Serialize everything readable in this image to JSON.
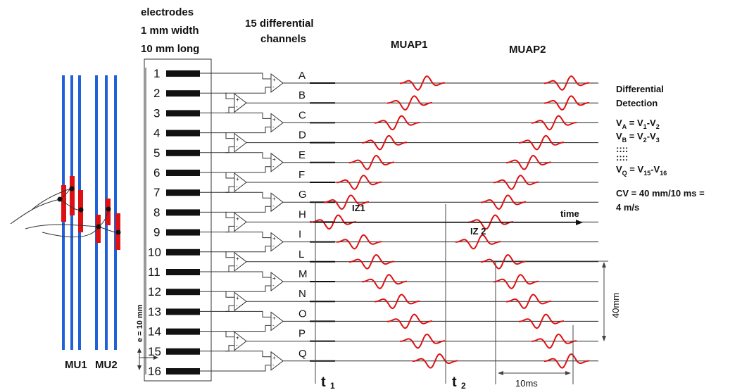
{
  "header": {
    "electrodes_l1": "electrodes",
    "electrodes_l2": "1 mm width",
    "electrodes_l3": "10 mm long",
    "channels_l1": "15 differential",
    "channels_l2": "channels",
    "muap1": "MUAP1",
    "muap2": "MUAP2"
  },
  "electrodes": [
    "1",
    "2",
    "3",
    "4",
    "5",
    "6",
    "7",
    "8",
    "9",
    "10",
    "11",
    "12",
    "13",
    "14",
    "15",
    "16"
  ],
  "channels": [
    "A",
    "B",
    "C",
    "D",
    "E",
    "F",
    "G",
    "H",
    "I",
    "L",
    "M",
    "N",
    "O",
    "P",
    "Q"
  ],
  "muap1_centers": [
    600,
    582,
    564,
    546,
    528,
    510,
    492,
    474,
    510,
    528,
    546,
    564,
    582,
    600,
    618
  ],
  "muap2_centers": [
    805,
    805,
    787,
    769,
    751,
    733,
    715,
    697,
    679,
    715,
    733,
    751,
    769,
    787,
    805
  ],
  "muap1_amplitude": 7,
  "muap2_amplitude": 7,
  "muscle": {
    "mu1_label": "MU1",
    "mu2_label": "MU2",
    "fiber_color": "#2060d8",
    "endplate_color": "#dd1111"
  },
  "waveform_color": "#dd1111",
  "labels": {
    "iz1": "IZ1",
    "iz2": "IZ 2",
    "time": "time",
    "t1": "t",
    "t1_sub": "1",
    "t2": "t",
    "t2_sub": "2",
    "dist_40": "40mm",
    "dist_10ms": "10ms",
    "spacing": "e = 10 mm"
  },
  "info": {
    "title_l1": "Differential",
    "title_l2": "Detection",
    "va_lhs": "V",
    "va_lhs_sub": "A",
    "va_rhs_a": " = V",
    "va_rhs_a_sub": "1",
    "va_rhs_b": "-V",
    "va_rhs_b_sub": "2",
    "vb_lhs": "V",
    "vb_lhs_sub": "B",
    "vb_rhs_a": " = V",
    "vb_rhs_a_sub": "2",
    "vb_rhs_b": "-V",
    "vb_rhs_b_sub": "3",
    "dots1": "::::",
    "dots2": "::::",
    "vq_lhs": "V",
    "vq_lhs_sub": "Q",
    "vq_rhs_a": " = V",
    "vq_rhs_a_sub": "15",
    "vq_rhs_b": "-V",
    "vq_rhs_b_sub": "16",
    "cv_l1": "CV = 40 mm/10 ms =",
    "cv_l2": "4 m/s"
  }
}
